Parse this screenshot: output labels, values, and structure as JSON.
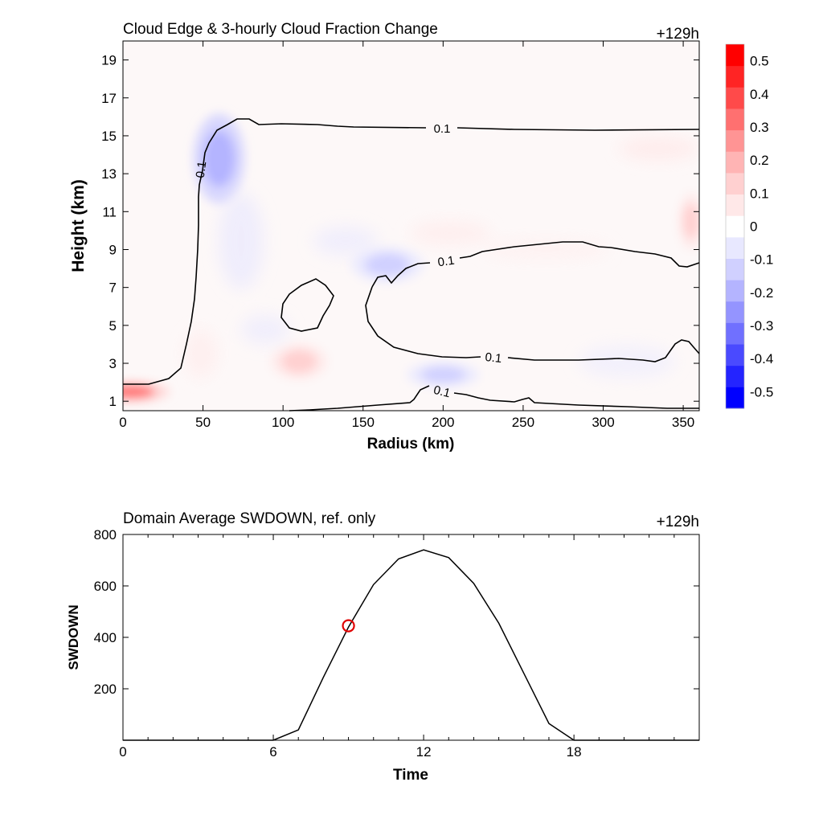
{
  "chart_data": [
    {
      "type": "heatmap",
      "title": "Cloud Edge & 3-hourly Cloud Fraction Change",
      "time_label": "+129h",
      "xlabel": "Radius (km)",
      "ylabel": "Height (km)",
      "xlim": [
        0,
        360
      ],
      "ylim": [
        0.5,
        20
      ],
      "xticks": [
        0,
        50,
        100,
        150,
        200,
        250,
        300,
        350
      ],
      "yticks": [
        1,
        3,
        5,
        7,
        9,
        11,
        13,
        15,
        17,
        19
      ],
      "colorbar": {
        "range": [
          -0.55,
          0.55
        ],
        "ticks": [
          0.5,
          0.4,
          0.3,
          0.2,
          0.1,
          0,
          -0.1,
          -0.2,
          -0.3,
          -0.4,
          -0.5
        ],
        "tick_labels": [
          "0.5",
          "0.4",
          "0.3",
          "0.2",
          "0.1",
          "0",
          "-0.1",
          "-0.2",
          "-0.3",
          "-0.4",
          "-0.5"
        ],
        "colors": [
          "#0000ff",
          "#2424ff",
          "#4a4aff",
          "#7070ff",
          "#9494ff",
          "#b4b4ff",
          "#d0d0ff",
          "#e8e8ff",
          "#ffffff",
          "#ffe8e8",
          "#ffd0d0",
          "#ffb4b4",
          "#ff9494",
          "#ff7070",
          "#ff4a4a",
          "#ff2424",
          "#ff0000"
        ]
      },
      "shaded_anomalies": [
        {
          "r": 5,
          "z": 1.5,
          "value": 0.35
        },
        {
          "r": 60,
          "z": 13.8,
          "value": -0.22
        },
        {
          "r": 110,
          "z": 3.1,
          "value": 0.14
        },
        {
          "r": 165,
          "z": 8.2,
          "value": -0.12
        },
        {
          "r": 200,
          "z": 2.4,
          "value": -0.13
        },
        {
          "r": 355,
          "z": 10.5,
          "value": 0.11
        }
      ],
      "contour_level": 0.1,
      "contour_labels": [
        "0.1",
        "0.1",
        "0.1",
        "0.1",
        "0.1"
      ]
    },
    {
      "type": "line",
      "title": "Domain Average SWDOWN, ref. only",
      "time_label": "+129h",
      "xlabel": "Time",
      "ylabel": "SWDOWN",
      "xlim": [
        0,
        23
      ],
      "ylim": [
        0,
        800
      ],
      "xticks": [
        0,
        6,
        12,
        18
      ],
      "yticks": [
        200,
        400,
        600,
        800
      ],
      "x": [
        0,
        1,
        2,
        3,
        4,
        5,
        6,
        7,
        8,
        9,
        10,
        11,
        12,
        13,
        14,
        15,
        16,
        17,
        18,
        19,
        20,
        21,
        22,
        23
      ],
      "values": [
        0,
        0,
        0,
        0,
        0,
        0,
        0,
        40,
        245,
        440,
        605,
        705,
        740,
        710,
        610,
        455,
        260,
        65,
        0,
        0,
        0,
        0,
        0,
        0
      ],
      "marker": {
        "x": 9,
        "y": 445,
        "color": "#e00000"
      }
    }
  ]
}
